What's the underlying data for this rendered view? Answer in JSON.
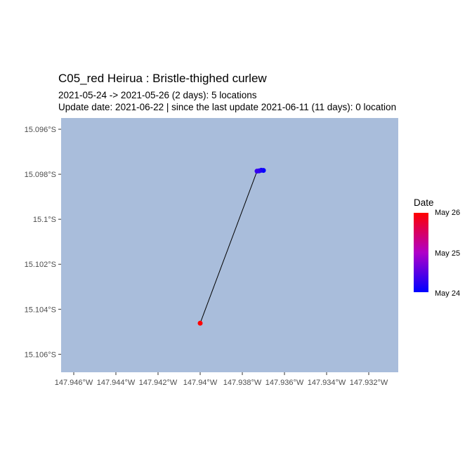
{
  "title": "C05_red Heirua :  Bristle-thighed curlew",
  "subtitle_line1": "2021-05-24 -> 2021-05-26 (2 days): 5 locations",
  "subtitle_line2": "Update date: 2021-06-22 |  since the last update 2021-06-11 (11 days): 0 location",
  "colors": {
    "panel": "#a9bddb",
    "track": "#000000",
    "start": "#0000ff",
    "middle": "#b000c8",
    "end": "#ff0000"
  },
  "legend": {
    "title": "Date",
    "labels": [
      "May 26",
      "May 25",
      "May 24"
    ]
  },
  "chart_data": {
    "type": "scatter",
    "x_ticks": [
      {
        "value": -147.946,
        "label": "147.946°W"
      },
      {
        "value": -147.944,
        "label": "147.944°W"
      },
      {
        "value": -147.942,
        "label": "147.942°W"
      },
      {
        "value": -147.94,
        "label": "147.94°W"
      },
      {
        "value": -147.938,
        "label": "147.938°W"
      },
      {
        "value": -147.936,
        "label": "147.936°W"
      },
      {
        "value": -147.934,
        "label": "147.934°W"
      },
      {
        "value": -147.932,
        "label": "147.932°W"
      }
    ],
    "y_ticks": [
      {
        "value": -15.096,
        "label": "15.096°S"
      },
      {
        "value": -15.098,
        "label": "15.098°S"
      },
      {
        "value": -15.1,
        "label": "15.1°S"
      },
      {
        "value": -15.102,
        "label": "15.102°S"
      },
      {
        "value": -15.104,
        "label": "15.104°S"
      },
      {
        "value": -15.106,
        "label": "15.106°S"
      }
    ],
    "xlim": [
      -147.9466,
      -147.9306
    ],
    "ylim": [
      -15.1068,
      -15.0955
    ],
    "points": [
      {
        "lon": -147.937,
        "lat": -15.09783,
        "date": "2021-05-24",
        "t": 0.0
      },
      {
        "lon": -147.9371,
        "lat": -15.09782,
        "date": "2021-05-24",
        "t": 0.05
      },
      {
        "lon": -147.9372,
        "lat": -15.09785,
        "date": "2021-05-24",
        "t": 0.1
      },
      {
        "lon": -147.9373,
        "lat": -15.09786,
        "date": "2021-05-24",
        "t": 0.15
      },
      {
        "lon": -147.94,
        "lat": -15.10462,
        "date": "2021-05-26",
        "t": 1.0
      }
    ]
  }
}
